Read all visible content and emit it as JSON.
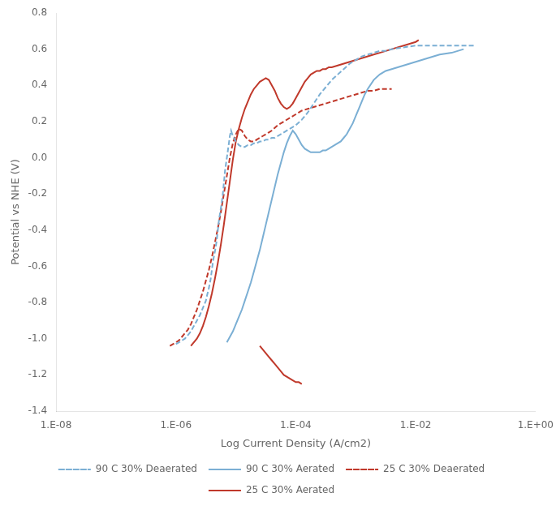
{
  "chart_data": {
    "type": "line",
    "x_label": "Log Current Density (A/cm2)",
    "y_label": "Potential vs NHE (V)",
    "xlim": [
      -8,
      0
    ],
    "ylim": [
      -1.4,
      0.8
    ],
    "xticks": [
      {
        "value": -8,
        "label": "1.E-08"
      },
      {
        "value": -6,
        "label": "1.E-06"
      },
      {
        "value": -4,
        "label": "1.E-04"
      },
      {
        "value": -2,
        "label": "1.E-02"
      },
      {
        "value": 0,
        "label": "1.E+00"
      }
    ],
    "yticks": [
      -1.4,
      -1.2,
      {
        "value": -1.0,
        "label": "-1.0"
      },
      -0.8,
      -0.6,
      -0.4,
      -0.2,
      {
        "value": 0.0,
        "label": "0.0"
      },
      0.2,
      0.4,
      0.6,
      0.8
    ],
    "grid": false,
    "legend": "bottom",
    "series": [
      {
        "name": "90 C 30% Deaerated",
        "color": "#7BAFD4",
        "line_style": "dashed",
        "x": [
          -6.0,
          -5.9,
          -5.85,
          -5.8,
          -5.75,
          -5.7,
          -5.65,
          -5.6,
          -5.55,
          -5.5,
          -5.48,
          -5.45,
          -5.42,
          -5.4,
          -5.38,
          -5.35,
          -5.32,
          -5.3,
          -5.28,
          -5.25,
          -5.22,
          -5.2,
          -5.18,
          -5.15,
          -5.12,
          -5.1,
          -5.08,
          -5.05,
          -5.0,
          -4.95,
          -4.9,
          -4.85,
          -4.8,
          -4.75,
          -4.7,
          -4.65,
          -4.6,
          -4.55,
          -4.5,
          -4.45,
          -4.4,
          -4.35,
          -4.3,
          -4.2,
          -4.1,
          -4.0,
          -3.9,
          -3.8,
          -3.7,
          -3.6,
          -3.5,
          -3.4,
          -3.3,
          -3.2,
          -3.1,
          -3.0,
          -2.9,
          -2.8,
          -2.7,
          -2.6,
          -2.5,
          -2.4,
          -2.2,
          -2.0,
          -1.8,
          -1.6,
          -1.4,
          -1.2,
          -1.0
        ],
        "values": [
          -1.03,
          -1.01,
          -1.0,
          -0.98,
          -0.96,
          -0.93,
          -0.9,
          -0.87,
          -0.83,
          -0.79,
          -0.76,
          -0.72,
          -0.67,
          -0.62,
          -0.57,
          -0.52,
          -0.46,
          -0.4,
          -0.34,
          -0.28,
          -0.21,
          -0.14,
          -0.07,
          0.0,
          0.07,
          0.12,
          0.15,
          0.12,
          0.09,
          0.07,
          0.06,
          0.06,
          0.07,
          0.07,
          0.08,
          0.08,
          0.09,
          0.09,
          0.1,
          0.1,
          0.11,
          0.11,
          0.12,
          0.14,
          0.16,
          0.18,
          0.21,
          0.25,
          0.3,
          0.35,
          0.39,
          0.43,
          0.46,
          0.49,
          0.52,
          0.54,
          0.56,
          0.57,
          0.58,
          0.59,
          0.59,
          0.6,
          0.61,
          0.62,
          0.62,
          0.62,
          0.62,
          0.62,
          0.62
        ]
      },
      {
        "name": "90 C 30% Aerated",
        "color": "#7BAFD4",
        "line_style": "solid",
        "x": [
          -5.15,
          -5.1,
          -5.05,
          -5.0,
          -4.95,
          -4.9,
          -4.85,
          -4.8,
          -4.75,
          -4.7,
          -4.65,
          -4.6,
          -4.55,
          -4.5,
          -4.45,
          -4.4,
          -4.35,
          -4.3,
          -4.25,
          -4.2,
          -4.15,
          -4.1,
          -4.05,
          -4.0,
          -3.95,
          -3.9,
          -3.85,
          -3.8,
          -3.75,
          -3.7,
          -3.65,
          -3.6,
          -3.55,
          -3.5,
          -3.45,
          -3.4,
          -3.35,
          -3.3,
          -3.25,
          -3.2,
          -3.15,
          -3.1,
          -3.05,
          -3.0,
          -2.95,
          -2.9,
          -2.85,
          -2.8,
          -2.7,
          -2.6,
          -2.5,
          -2.4,
          -2.3,
          -2.2,
          -2.1,
          -2.0,
          -1.9,
          -1.8,
          -1.6,
          -1.4,
          -1.2
        ],
        "values": [
          -1.02,
          -0.99,
          -0.96,
          -0.92,
          -0.88,
          -0.84,
          -0.79,
          -0.74,
          -0.69,
          -0.63,
          -0.57,
          -0.51,
          -0.44,
          -0.37,
          -0.3,
          -0.23,
          -0.16,
          -0.09,
          -0.03,
          0.03,
          0.08,
          0.12,
          0.15,
          0.13,
          0.1,
          0.07,
          0.05,
          0.04,
          0.03,
          0.03,
          0.03,
          0.03,
          0.04,
          0.04,
          0.05,
          0.06,
          0.07,
          0.08,
          0.09,
          0.11,
          0.13,
          0.16,
          0.19,
          0.23,
          0.27,
          0.31,
          0.35,
          0.38,
          0.43,
          0.46,
          0.48,
          0.49,
          0.5,
          0.51,
          0.52,
          0.53,
          0.54,
          0.55,
          0.57,
          0.58,
          0.6
        ]
      },
      {
        "name": "25 C 30% Deaerated",
        "color": "#C0392B",
        "line_style": "dashed",
        "x": [
          -6.1,
          -6.0,
          -5.95,
          -5.9,
          -5.85,
          -5.8,
          -5.75,
          -5.7,
          -5.65,
          -5.6,
          -5.55,
          -5.5,
          -5.45,
          -5.4,
          -5.35,
          -5.3,
          -5.25,
          -5.2,
          -5.15,
          -5.1,
          -5.05,
          -5.0,
          -4.95,
          -4.9,
          -4.85,
          -4.8,
          -4.75,
          -4.7,
          -4.65,
          -4.6,
          -4.55,
          -4.5,
          -4.45,
          -4.4,
          -4.3,
          -4.2,
          -4.1,
          -4.0,
          -3.9,
          -3.8,
          -3.7,
          -3.6,
          -3.5,
          -3.4,
          -3.3,
          -3.2,
          -3.1,
          -3.0,
          -2.9,
          -2.8,
          -2.7,
          -2.6,
          -2.5,
          -2.4
        ],
        "values": [
          -1.04,
          -1.02,
          -1.01,
          -0.99,
          -0.97,
          -0.95,
          -0.92,
          -0.88,
          -0.84,
          -0.79,
          -0.74,
          -0.68,
          -0.62,
          -0.55,
          -0.47,
          -0.39,
          -0.3,
          -0.2,
          -0.1,
          0.0,
          0.08,
          0.13,
          0.16,
          0.15,
          0.12,
          0.1,
          0.09,
          0.09,
          0.1,
          0.11,
          0.12,
          0.13,
          0.14,
          0.15,
          0.18,
          0.2,
          0.22,
          0.24,
          0.26,
          0.27,
          0.28,
          0.29,
          0.3,
          0.31,
          0.32,
          0.33,
          0.34,
          0.35,
          0.36,
          0.37,
          0.37,
          0.38,
          0.38,
          0.38
        ]
      },
      {
        "name": "25 C 30% Aerated",
        "color": "#C0392B",
        "line_style": "solid",
        "x": [
          -5.75,
          -5.7,
          -5.65,
          -5.6,
          -5.55,
          -5.5,
          -5.45,
          -5.4,
          -5.35,
          -5.3,
          -5.25,
          -5.2,
          -5.15,
          -5.1,
          -5.05,
          -5.0,
          -4.95,
          -4.9,
          -4.85,
          -4.8,
          -4.75,
          -4.7,
          -4.65,
          -4.6,
          -4.55,
          -4.5,
          -4.45,
          -4.4,
          -4.35,
          -4.3,
          -4.25,
          -4.2,
          -4.15,
          -4.1,
          -4.05,
          -4.0,
          -3.95,
          -3.9,
          -3.85,
          -3.8,
          -3.75,
          -3.7,
          -3.65,
          -3.6,
          -3.55,
          -3.5,
          -3.45,
          -3.4,
          -3.3,
          -3.2,
          -3.1,
          -3.0,
          -2.9,
          -2.8,
          -2.7,
          -2.6,
          -2.5,
          -2.4,
          -2.3,
          -2.2,
          -2.1,
          -2.0,
          -1.95
        ],
        "values": [
          -1.04,
          -1.02,
          -1.0,
          -0.97,
          -0.93,
          -0.88,
          -0.82,
          -0.75,
          -0.67,
          -0.58,
          -0.48,
          -0.37,
          -0.25,
          -0.13,
          -0.01,
          0.09,
          0.16,
          0.22,
          0.27,
          0.31,
          0.35,
          0.38,
          0.4,
          0.42,
          0.43,
          0.44,
          0.43,
          0.4,
          0.37,
          0.33,
          0.3,
          0.28,
          0.27,
          0.28,
          0.3,
          0.33,
          0.36,
          0.39,
          0.42,
          0.44,
          0.46,
          0.47,
          0.48,
          0.48,
          0.49,
          0.49,
          0.5,
          0.5,
          0.51,
          0.52,
          0.53,
          0.54,
          0.55,
          0.56,
          0.57,
          0.58,
          0.59,
          0.6,
          0.61,
          0.62,
          0.63,
          0.64,
          0.65
        ]
      },
      {
        "color": "#C0392B",
        "line_style": "solid",
        "x": [
          -4.6,
          -4.55,
          -4.5,
          -4.45,
          -4.4,
          -4.35,
          -4.3,
          -4.25,
          -4.2,
          -4.15,
          -4.1,
          -4.05,
          -4.0,
          -3.95,
          -3.9
        ],
        "values": [
          -1.04,
          -1.06,
          -1.08,
          -1.1,
          -1.12,
          -1.14,
          -1.16,
          -1.18,
          -1.2,
          -1.21,
          -1.22,
          -1.23,
          -1.24,
          -1.24,
          -1.25
        ]
      }
    ]
  }
}
